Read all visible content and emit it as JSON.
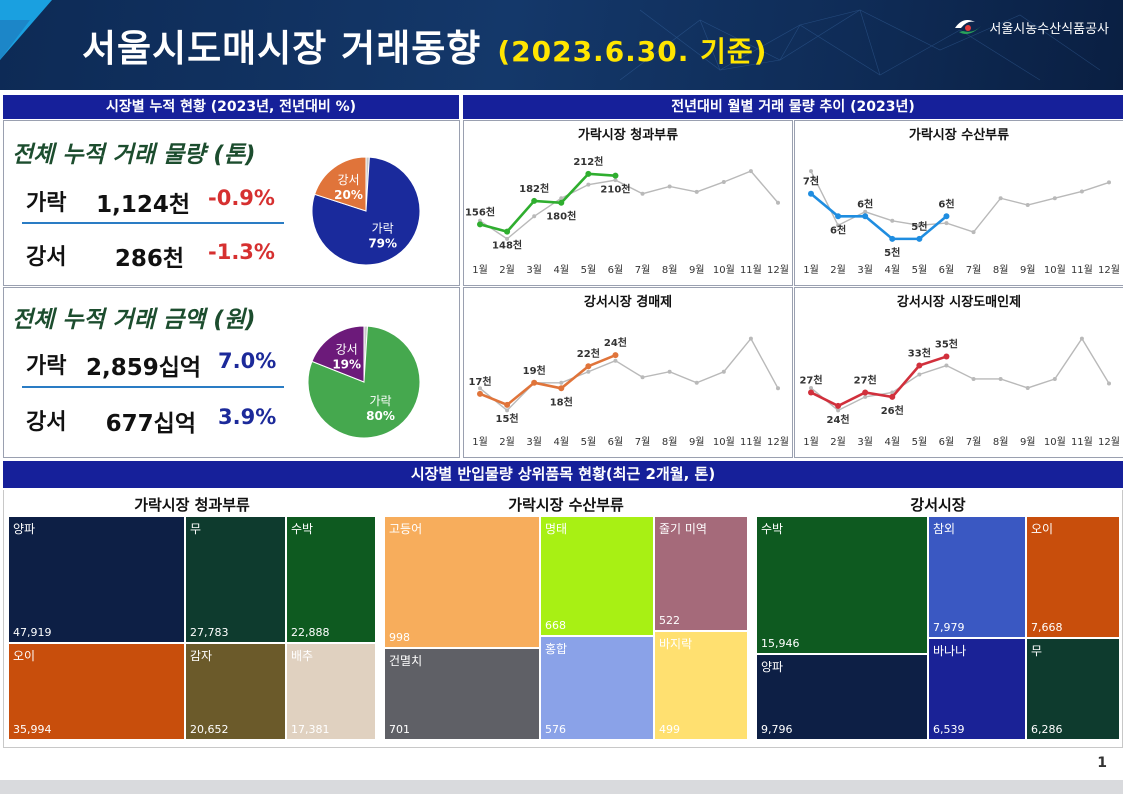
{
  "header": {
    "title": "서울시도매시장 거래동향",
    "date": "(2023.6.30. 기준)",
    "org": "서울시농수산식품공사"
  },
  "cumulative": {
    "section_title": "시장별 누적 현황 (2023년, 전년대비 %)",
    "volume": {
      "label": "전체 누적 거래 물량 (톤)",
      "rows": [
        {
          "name": "가락",
          "value": "1,124천",
          "change": "-0.9%"
        },
        {
          "name": "강서",
          "value": "286천",
          "change": "-1.3%"
        }
      ],
      "pie": [
        {
          "name": "가락",
          "pct": "79%",
          "value": 79,
          "color": "#1a2a9c"
        },
        {
          "name": "강서",
          "pct": "20%",
          "value": 20,
          "color": "#e0743a"
        },
        {
          "name": "",
          "pct": "",
          "value": 1,
          "color": "#c9c9c9"
        }
      ]
    },
    "amount": {
      "label": "전체 누적 거래 금액 (원)",
      "rows": [
        {
          "name": "가락",
          "value": "2,859십억",
          "change": "7.0%"
        },
        {
          "name": "강서",
          "value": "677십억",
          "change": "3.9%"
        }
      ],
      "pie": [
        {
          "name": "가락",
          "pct": "80%",
          "value": 80,
          "color": "#45a84e"
        },
        {
          "name": "강서",
          "pct": "19%",
          "value": 19,
          "color": "#6c1a7a"
        },
        {
          "name": "",
          "pct": "",
          "value": 1,
          "color": "#c9c9c9"
        }
      ]
    }
  },
  "monthly": {
    "section_title": "전년대비 월별 거래 물량 추이 (2023년)",
    "months": [
      "1월",
      "2월",
      "3월",
      "4월",
      "5월",
      "6월",
      "7월",
      "8월",
      "9월",
      "10월",
      "11월",
      "12월"
    ]
  },
  "chart_data": [
    {
      "type": "line",
      "title": "가락시장 청과부류",
      "color": "#2fae2f",
      "x": [
        "1월",
        "2월",
        "3월",
        "4월",
        "5월",
        "6월",
        "7월",
        "8월",
        "9월",
        "10월",
        "11월",
        "12월"
      ],
      "series": [
        {
          "values": [
            156,
            148,
            182,
            180,
            212,
            210
          ]
        },
        {
          "values": [
            160,
            140,
            165,
            185,
            200,
            205,
            190,
            198,
            192,
            203,
            215,
            180
          ]
        }
      ],
      "labels": [
        "156천",
        "148천",
        "182천",
        "180천",
        "212천",
        "210천"
      ]
    },
    {
      "type": "line",
      "title": "가락시장 수산부류",
      "color": "#1f8de0",
      "x": [
        "1월",
        "2월",
        "3월",
        "4월",
        "5월",
        "6월",
        "7월",
        "8월",
        "9월",
        "10월",
        "11월",
        "12월"
      ],
      "series": [
        {
          "values": [
            7,
            6,
            6,
            5,
            5,
            6
          ]
        },
        {
          "values": [
            8,
            5.6,
            6.2,
            5.8,
            5.6,
            5.7,
            5.3,
            6.8,
            6.5,
            6.8,
            7.1,
            7.5
          ]
        }
      ],
      "labels": [
        "7천",
        "6천",
        "6천",
        "5천",
        "5천",
        "6천"
      ]
    },
    {
      "type": "line",
      "title": "강서시장 경매제",
      "color": "#e0743a",
      "x": [
        "1월",
        "2월",
        "3월",
        "4월",
        "5월",
        "6월",
        "7월",
        "8월",
        "9월",
        "10월",
        "11월",
        "12월"
      ],
      "series": [
        {
          "values": [
            17,
            15,
            19,
            18,
            22,
            24
          ]
        },
        {
          "values": [
            18,
            14,
            19,
            19,
            21,
            23,
            20,
            21,
            19,
            21,
            27,
            18
          ]
        }
      ],
      "labels": [
        "17천",
        "15천",
        "19천",
        "18천",
        "22천",
        "24천"
      ]
    },
    {
      "type": "line",
      "title": "강서시장 시장도매인제",
      "color": "#d1303c",
      "x": [
        "1월",
        "2월",
        "3월",
        "4월",
        "5월",
        "6월",
        "7월",
        "8월",
        "9월",
        "10월",
        "11월",
        "12월"
      ],
      "series": [
        {
          "values": [
            27,
            24,
            27,
            26,
            33,
            35
          ]
        },
        {
          "values": [
            28,
            23,
            26,
            27,
            31,
            33,
            30,
            30,
            28,
            30,
            39,
            29
          ]
        }
      ],
      "labels": [
        "27천",
        "24천",
        "27천",
        "26천",
        "33천",
        "35천"
      ]
    }
  ],
  "treemaps": {
    "section_title": "시장별 반입물량 상위품목 현황(최근 2개월, 톤)",
    "groups": [
      {
        "title": "가락시장 청과부류",
        "items": [
          {
            "name": "양파",
            "value": "47,919",
            "color": "#0d1f45"
          },
          {
            "name": "무",
            "value": "27,783",
            "color": "#0e3b2e"
          },
          {
            "name": "수박",
            "value": "22,888",
            "color": "#0e5a20"
          },
          {
            "name": "오이",
            "value": "35,994",
            "color": "#c84e0c"
          },
          {
            "name": "감자",
            "value": "20,652",
            "color": "#6b5a2a"
          },
          {
            "name": "배추",
            "value": "17,381",
            "color": "#e0d1c0"
          }
        ]
      },
      {
        "title": "가락시장 수산부류",
        "items": [
          {
            "name": "고등어",
            "value": "998",
            "color": "#f7ad5c"
          },
          {
            "name": "명태",
            "value": "668",
            "color": "#a8f014"
          },
          {
            "name": "줄기 미역",
            "value": "522",
            "color": "#a56a7a"
          },
          {
            "name": "건멸치",
            "value": "701",
            "color": "#5f6066"
          },
          {
            "name": "홍합",
            "value": "576",
            "color": "#8aa2e8"
          },
          {
            "name": "바지락",
            "value": "499",
            "color": "#ffe070"
          }
        ]
      },
      {
        "title": "강서시장",
        "items": [
          {
            "name": "수박",
            "value": "15,946",
            "color": "#0e5a20"
          },
          {
            "name": "참외",
            "value": "7,979",
            "color": "#3a58c2"
          },
          {
            "name": "오이",
            "value": "7,668",
            "color": "#c84e0c"
          },
          {
            "name": "양파",
            "value": "9,796",
            "color": "#0d1f45"
          },
          {
            "name": "바나나",
            "value": "6,539",
            "color": "#1a2296"
          },
          {
            "name": "무",
            "value": "6,286",
            "color": "#0e3b2e"
          }
        ]
      }
    ]
  },
  "page_number": "1"
}
